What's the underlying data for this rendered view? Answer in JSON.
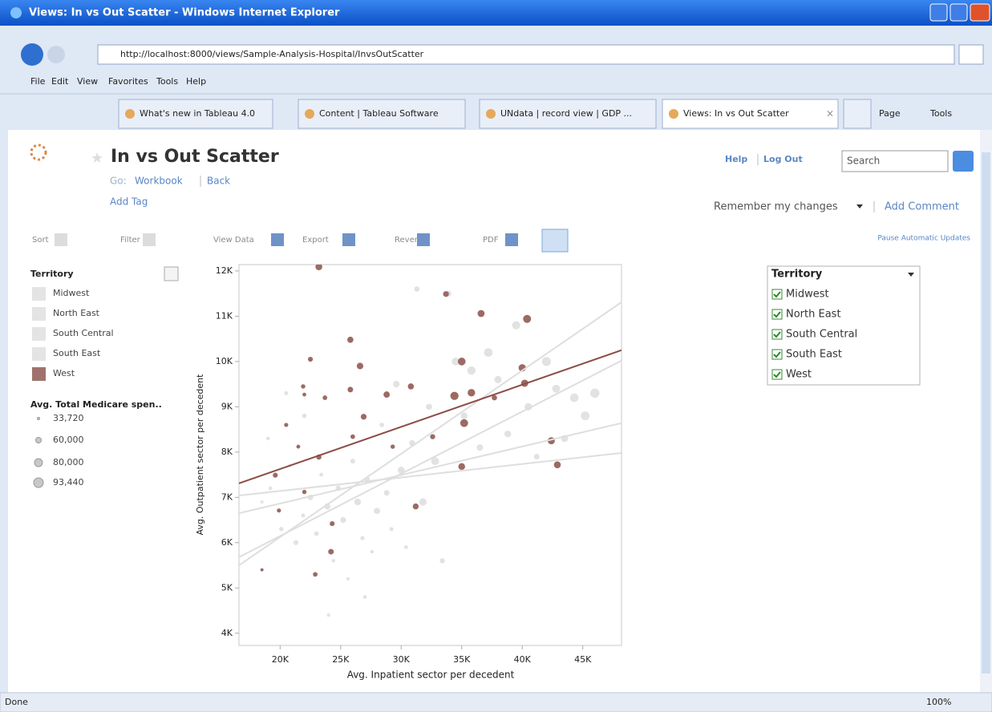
{
  "browser": {
    "title": "Views: In vs Out Scatter - Windows Internet Explorer",
    "url": "http://localhost:8000/views/Sample-Analysis-Hospital/InvsOutScatter",
    "menu": [
      "File",
      "Edit",
      "View",
      "Favorites",
      "Tools",
      "Help"
    ],
    "tabs": [
      "What's new in Tableau 4.0",
      "Content | Tableau Software",
      "UNdata | record view | GDP ...",
      "Views: In vs Out Scatter"
    ],
    "tab_tools": [
      "Page",
      "Tools"
    ],
    "status": "Done",
    "zoom": "100%"
  },
  "header": {
    "title": "In vs Out Scatter",
    "go": "Go:",
    "workbook": "Workbook",
    "back": "Back",
    "add_tag": "Add Tag",
    "help": "Help",
    "logout": "Log Out",
    "search": "Search",
    "remember": "Remember my changes",
    "add_comment": "Add Comment",
    "pause": "Pause Automatic Updates"
  },
  "toolbar": [
    "Sort",
    "Filter",
    "View Data",
    "Export",
    "Revert",
    "PDF"
  ],
  "chart_data": {
    "type": "scatter",
    "xlabel": "Avg. Inpatient sector per decedent",
    "ylabel": "Avg. Outpatient sector per decedent",
    "xlim": [
      16600,
      48200
    ],
    "ylim": [
      3730,
      12140
    ],
    "xticks": [
      {
        "value": 20000,
        "label": "20K"
      },
      {
        "value": 25000,
        "label": "25K"
      },
      {
        "value": 30000,
        "label": "30K"
      },
      {
        "value": 35000,
        "label": "35K"
      },
      {
        "value": 40000,
        "label": "40K"
      },
      {
        "value": 45000,
        "label": "45K"
      }
    ],
    "yticks": [
      {
        "value": 4000,
        "label": "4K"
      },
      {
        "value": 5000,
        "label": "5K"
      },
      {
        "value": 6000,
        "label": "6K"
      },
      {
        "value": 7000,
        "label": "7K"
      },
      {
        "value": 8000,
        "label": "8K"
      },
      {
        "value": 9000,
        "label": "9K"
      },
      {
        "value": 10000,
        "label": "10K"
      },
      {
        "value": 11000,
        "label": "11K"
      },
      {
        "value": 12000,
        "label": "12K"
      }
    ],
    "color_legend": {
      "title": "Territory",
      "categories": [
        "Midwest",
        "North East",
        "South Central",
        "South East",
        "West"
      ],
      "colors": [
        "#e4e4e4",
        "#e4e4e4",
        "#e4e4e4",
        "#e4e4e4",
        "#a0726c"
      ]
    },
    "size_legend": {
      "title": "Avg. Total Medicare spen..",
      "ticks": [
        {
          "value": 33720,
          "label": "33,720"
        },
        {
          "value": 60000,
          "label": "60,000"
        },
        {
          "value": 80000,
          "label": "80,000"
        },
        {
          "value": 93440,
          "label": "93,440"
        }
      ]
    },
    "filter": {
      "title": "Territory",
      "items": [
        "Midwest",
        "North East",
        "South Central",
        "South East",
        "West"
      ]
    },
    "series": [
      {
        "color": "#e2e2e2",
        "x": [
          18500,
          19200,
          20100,
          20800,
          21300,
          21900,
          22500,
          23000,
          23400,
          23900,
          24400,
          24800,
          25200,
          25600,
          26000,
          26400,
          26800,
          27200,
          27600,
          28000,
          28400,
          28800,
          29200,
          29600,
          30000,
          30400,
          30900,
          31300,
          31800,
          32300,
          32800,
          33400,
          33900,
          34500,
          35200,
          35800,
          36500,
          37200,
          38000,
          38800,
          39500,
          40500,
          41200,
          42000,
          42800,
          43500,
          44300,
          45200,
          46000,
          24000,
          27000,
          22000,
          20500,
          19000
        ],
        "y": [
          6900,
          7200,
          6300,
          7700,
          6000,
          6600,
          7000,
          6200,
          7500,
          6800,
          5600,
          7200,
          6500,
          5200,
          7800,
          6900,
          6100,
          7400,
          5800,
          6700,
          8600,
          7100,
          6300,
          9500,
          7600,
          5900,
          8200,
          11600,
          6900,
          9000,
          7800,
          5600,
          11500,
          10000,
          8800,
          9800,
          8100,
          10200,
          9600,
          8400,
          10800,
          9000,
          7900,
          10000,
          9400,
          8300,
          9200,
          8800,
          9300,
          4400,
          4800,
          8800,
          9300,
          8300
        ],
        "size": [
          40000,
          45000,
          50000,
          42000,
          55000,
          48000,
          60000,
          52000,
          46000,
          65000,
          44000,
          58000,
          62000,
          41000,
          54000,
          70000,
          49000,
          57000,
          43000,
          66000,
          52000,
          61000,
          47000,
          68000,
          72000,
          45000,
          63000,
          59000,
          75000,
          64000,
          80000,
          56000,
          62000,
          78000,
          70000,
          83000,
          67000,
          85000,
          74000,
          69000,
          81000,
          76000,
          60000,
          88000,
          79000,
          72000,
          84000,
          86000,
          90000,
          42000,
          45000,
          50000,
          47000,
          44000
        ]
      },
      {
        "name": "West",
        "color": "#9c6a63",
        "x": [
          23200,
          33700,
          36600,
          40400,
          25800,
          22500,
          26600,
          35000,
          40000,
          21900,
          22000,
          23700,
          25800,
          28800,
          30800,
          34400,
          35800,
          37700,
          40200,
          26900,
          35200,
          20500,
          21500,
          23200,
          26000,
          29300,
          32600,
          42400,
          42900,
          35000,
          19600,
          22000,
          19900,
          31200,
          24300,
          24200,
          22900,
          18500
        ],
        "y": [
          12090,
          11490,
          11060,
          10940,
          10480,
          10050,
          9900,
          10000,
          9860,
          9450,
          9270,
          9200,
          9380,
          9270,
          9450,
          9240,
          9310,
          9200,
          9520,
          8780,
          8640,
          8600,
          8120,
          7890,
          8340,
          8120,
          8340,
          8250,
          7720,
          7680,
          7490,
          7120,
          6710,
          6800,
          6420,
          5800,
          5300,
          5400
        ],
        "size": [
          70000,
          62000,
          72000,
          80000,
          65000,
          55000,
          68000,
          78000,
          75000,
          50000,
          45000,
          52000,
          60000,
          66000,
          64000,
          82000,
          76000,
          58000,
          74000,
          62000,
          79000,
          48000,
          46000,
          57000,
          52000,
          50000,
          56000,
          73000,
          71000,
          70000,
          55000,
          50000,
          48000,
          63000,
          54000,
          60000,
          52000,
          40000
        ]
      }
    ],
    "trendlines": [
      {
        "color": "#dedede",
        "x": [
          16600,
          48200
        ],
        "y": [
          5500,
          11310
        ]
      },
      {
        "color": "#dedede",
        "x": [
          16600,
          48200
        ],
        "y": [
          5680,
          10020
        ]
      },
      {
        "color": "#dedede",
        "x": [
          16600,
          48200
        ],
        "y": [
          6650,
          8640
        ]
      },
      {
        "color": "#dedede",
        "x": [
          16600,
          48200
        ],
        "y": [
          7040,
          7980
        ]
      },
      {
        "color": "#8c4c45",
        "x": [
          16600,
          48200
        ],
        "y": [
          7310,
          10250
        ]
      }
    ]
  }
}
